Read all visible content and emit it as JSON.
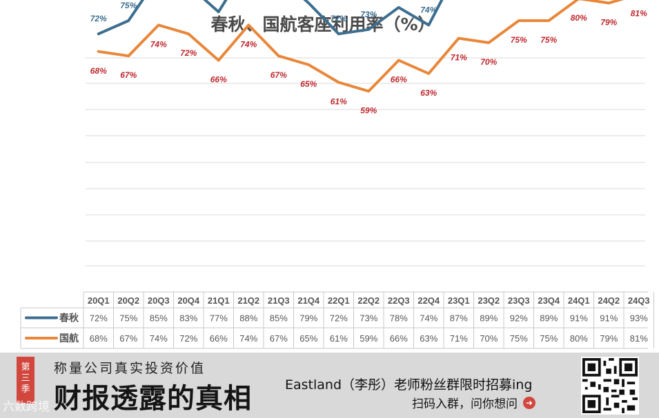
{
  "chart_data": {
    "type": "line",
    "title": "春秋、国航客座利用率（%）",
    "categories": [
      "20Q1",
      "20Q2",
      "20Q3",
      "20Q4",
      "21Q1",
      "21Q2",
      "21Q3",
      "21Q4",
      "22Q1",
      "22Q2",
      "22Q3",
      "22Q4",
      "23Q1",
      "23Q2",
      "23Q3",
      "23Q4",
      "24Q1",
      "24Q2",
      "24Q3"
    ],
    "series": [
      {
        "name": "春秋",
        "color": "#3c6e8f",
        "values": [
          72,
          75,
          85,
          83,
          77,
          88,
          85,
          79,
          72,
          73,
          78,
          74,
          87,
          89,
          92,
          89,
          91,
          91,
          93
        ],
        "labels": [
          "72%",
          "75%",
          "85%",
          "83%",
          "77%",
          "88%",
          "85%",
          "79%",
          "72%",
          "73%",
          "78%",
          "74%",
          "87%",
          "89%",
          "92%",
          "89%",
          "91%",
          "91%",
          "93%"
        ]
      },
      {
        "name": "国航",
        "color": "#e8873a",
        "values": [
          68,
          67,
          74,
          72,
          66,
          74,
          67,
          65,
          61,
          59,
          66,
          63,
          71,
          70,
          75,
          75,
          80,
          79,
          81
        ],
        "labels": [
          "68%",
          "67%",
          "74%",
          "72%",
          "66%",
          "74%",
          "67%",
          "65%",
          "61%",
          "59%",
          "66%",
          "63%",
          "71%",
          "70%",
          "75%",
          "75%",
          "80%",
          "79%",
          "81%"
        ]
      }
    ],
    "label_color_chunqiu": "#3c6e8f",
    "label_color_guohang": "#c0272d",
    "grid": true,
    "legend": "table-bottom"
  },
  "footer": {
    "season": [
      "第",
      "三",
      "季"
    ],
    "slogan": "称量公司真实投资价值",
    "brand": "财报透露的真相",
    "promo_line1": "Eastland（李彤）老师粉丝群限时招募ing",
    "promo_line2": "扫码入群，问你想问",
    "watermark": "六数跨境"
  }
}
